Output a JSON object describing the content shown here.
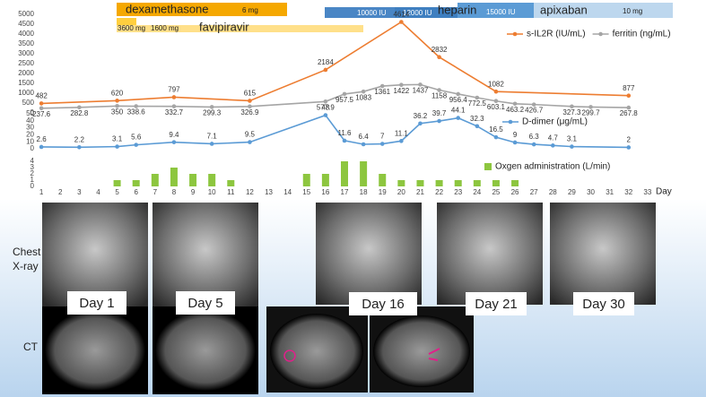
{
  "treatments": {
    "dexamethasone": {
      "name": "dexamethasone",
      "dose": "6 mg"
    },
    "favipiravir": {
      "name": "favipiravir",
      "doses": [
        "3600 mg",
        "1600 mg"
      ]
    },
    "heparin": {
      "name": "heparin",
      "doses": [
        "10000 IU",
        "12000 IU",
        "15000 IU"
      ]
    },
    "apixaban": {
      "name": "apixaban",
      "dose": "10 mg"
    }
  },
  "chart_data": [
    {
      "type": "line",
      "legend": "upper right",
      "xlim": [
        0,
        34
      ],
      "ylim": [
        0,
        5000
      ],
      "yticks": [
        0,
        500,
        1000,
        1500,
        2000,
        2500,
        3000,
        3500,
        4000,
        4500,
        5000
      ],
      "series": [
        {
          "name": "s-IL2R (IU/mL)",
          "color": "#ed7d31",
          "x": [
            1,
            5,
            8,
            12,
            16,
            20,
            22,
            25,
            32
          ],
          "values": [
            482,
            620,
            797,
            615,
            2184,
            4614,
            2832,
            1082,
            877
          ]
        },
        {
          "name": "ferritin (ng/mL)",
          "color": "#a5a5a5",
          "x": [
            1,
            3,
            5,
            6,
            8,
            10,
            12,
            16,
            17,
            18,
            19,
            20,
            21,
            22,
            23,
            24,
            25,
            26,
            27,
            29,
            30,
            32
          ],
          "values": [
            237.6,
            282.8,
            350,
            338.6,
            332.7,
            299.3,
            326.9,
            577.9,
            957.5,
            1083,
            1361,
            1422,
            1437,
            1158,
            956.4,
            772.5,
            603.1,
            463.2,
            426.7,
            327.3,
            299.7,
            267.8
          ]
        }
      ]
    },
    {
      "type": "line",
      "legend": "upper right",
      "xlim": [
        0,
        34
      ],
      "ylim": [
        0,
        50
      ],
      "yticks": [
        0,
        10,
        20,
        30,
        40,
        50
      ],
      "series": [
        {
          "name": "D-dimer (μg/mL)",
          "color": "#5b9bd5",
          "x": [
            1,
            3,
            5,
            6,
            8,
            10,
            12,
            16,
            17,
            18,
            19,
            20,
            21,
            22,
            23,
            24,
            25,
            26,
            27,
            28,
            29,
            32
          ],
          "values": [
            2.6,
            2.2,
            3.1,
            5.6,
            9.4,
            7.1,
            9.5,
            48,
            11.6,
            6.4,
            7,
            11.1,
            36.2,
            39.7,
            44.1,
            32.3,
            16.5,
            9,
            6.3,
            4.7,
            3.1,
            2
          ]
        }
      ]
    },
    {
      "type": "bar",
      "legend": "upper right",
      "xlim": [
        0,
        34
      ],
      "ylim": [
        0,
        4
      ],
      "yticks": [
        0,
        1,
        2,
        3,
        4
      ],
      "xticks": [
        1,
        2,
        3,
        4,
        5,
        6,
        7,
        8,
        9,
        10,
        11,
        12,
        13,
        14,
        15,
        16,
        17,
        18,
        19,
        20,
        21,
        22,
        23,
        24,
        25,
        26,
        27,
        28,
        29,
        30,
        31,
        32,
        33
      ],
      "xlabel": "Day",
      "series": [
        {
          "name": "Oxgen administration (L/min)",
          "color": "#8dc63f",
          "x": [
            5,
            6,
            7,
            8,
            9,
            10,
            11,
            15,
            16,
            17,
            18,
            19,
            20,
            21,
            22,
            23,
            24,
            25,
            26
          ],
          "values": [
            1,
            1,
            2,
            3,
            2,
            2,
            1,
            2,
            2,
            4,
            4,
            2,
            1,
            1,
            1,
            1,
            1,
            1,
            1
          ]
        }
      ]
    }
  ],
  "images": {
    "row_labels": {
      "xray": [
        "Chest",
        "X-ray"
      ],
      "ct": "CT"
    },
    "days": [
      "Day 1",
      "Day 5",
      "Day 16",
      "Day 21",
      "Day 30"
    ]
  }
}
